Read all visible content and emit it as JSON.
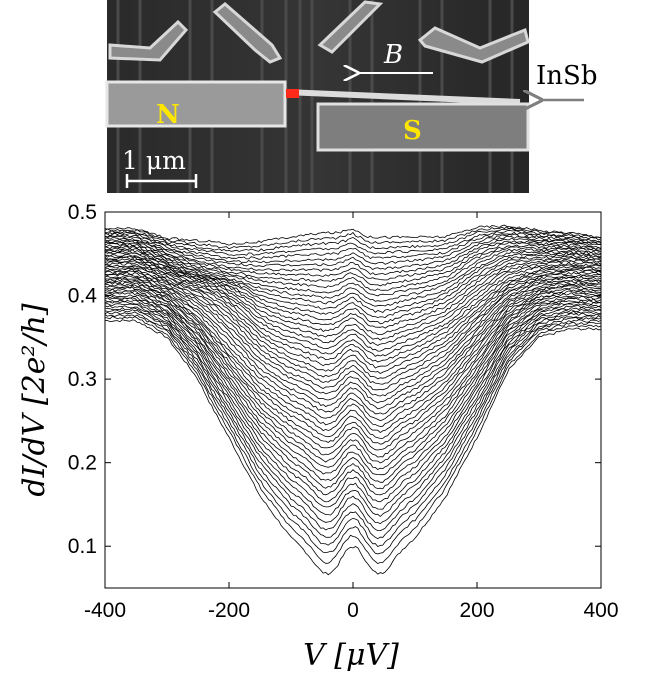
{
  "micrograph": {
    "label_n": "N",
    "label_s": "S",
    "label_b": "B",
    "label_insb": "InSb",
    "scale_bar": "1 μm",
    "colors": {
      "lead_label": "#ffe600",
      "contact": "#ff2a1a",
      "arrow_outside": "#7f7f7f"
    }
  },
  "chart_data": {
    "type": "line",
    "xlabel": "V [μV]",
    "ylabel": "dI/dV [2e²/h]",
    "xlim": [
      -400,
      400
    ],
    "ylim": [
      0.05,
      0.5
    ],
    "xticks": [
      -400,
      -200,
      0,
      200,
      400
    ],
    "yticks": [
      0.1,
      0.2,
      0.3,
      0.4,
      0.5
    ],
    "xtick_labels": [
      "-400",
      "-200",
      "0",
      "200",
      "400"
    ],
    "ytick_labels": [
      "0.1",
      "0.2",
      "0.3",
      "0.4",
      "0.5"
    ],
    "grid": false,
    "series_count": 56,
    "line_color": "#000000",
    "family": {
      "V": [
        -400,
        -350,
        -300,
        -250,
        -230,
        -200,
        -150,
        -100,
        -50,
        -25,
        0,
        25,
        50,
        100,
        150,
        200,
        250,
        300,
        350,
        400
      ],
      "bottom_trace": [
        0.37,
        0.37,
        0.35,
        0.3,
        0.27,
        0.23,
        0.16,
        0.11,
        0.08,
        0.07,
        0.065,
        0.07,
        0.08,
        0.11,
        0.16,
        0.23,
        0.31,
        0.35,
        0.36,
        0.36
      ],
      "top_trace": [
        0.48,
        0.48,
        0.47,
        0.47,
        0.47,
        0.465,
        0.465,
        0.47,
        0.475,
        0.475,
        0.48,
        0.47,
        0.47,
        0.47,
        0.47,
        0.48,
        0.48,
        0.475,
        0.475,
        0.47
      ],
      "left_edge_range": [
        0.3,
        0.48
      ],
      "right_edge_range": [
        0.23,
        0.47
      ],
      "side_peak_left_V": -230,
      "side_peak_left_dIdV": 0.42,
      "side_peak_right_V": 250,
      "side_peak_right_dIdV": 0.49,
      "zero_bias_peak_V": 0
    }
  }
}
